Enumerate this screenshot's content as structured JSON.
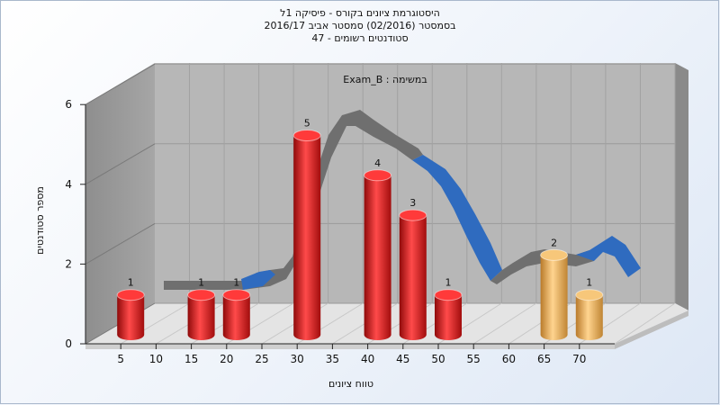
{
  "chart_data": {
    "type": "bar",
    "title_lines": [
      "היסטוגרמת ציונים בקורס - פיסיקה 1ל",
      "בסמסטר (02/2016) סמסטר אביב 2016/17",
      "סטודנטים רשומים - 47"
    ],
    "annotation": "Exam_B : במשימה",
    "xlabel": "טווח ציונים",
    "ylabel": "מספר סטודנטים",
    "x_ticks": [
      5,
      10,
      15,
      20,
      25,
      30,
      35,
      40,
      45,
      50,
      55,
      60,
      65,
      70
    ],
    "y_ticks": [
      0,
      2,
      4,
      6
    ],
    "ylim": [
      0,
      6
    ],
    "bars": [
      {
        "x": 5,
        "value": 1,
        "group": "red"
      },
      {
        "x": 15,
        "value": 1,
        "group": "red"
      },
      {
        "x": 20,
        "value": 1,
        "group": "red"
      },
      {
        "x": 30,
        "value": 5,
        "group": "red"
      },
      {
        "x": 40,
        "value": 4,
        "group": "red"
      },
      {
        "x": 45,
        "value": 3,
        "group": "red"
      },
      {
        "x": 50,
        "value": 1,
        "group": "red"
      },
      {
        "x": 65,
        "value": 2,
        "group": "gold"
      },
      {
        "x": 70,
        "value": 1,
        "group": "gold"
      }
    ],
    "colors": {
      "red": "#e41e1e",
      "gold": "#f0b45a",
      "curve_gray": "#6f6f6f",
      "curve_blue": "#2f6bbf",
      "wall": "#9a9a9a",
      "back": "#b7b7b7"
    },
    "grid": true
  }
}
